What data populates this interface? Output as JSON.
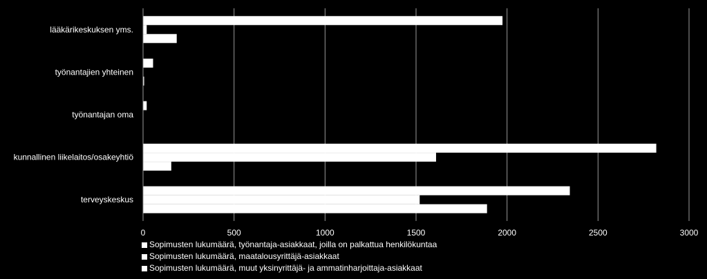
{
  "chart_data": {
    "type": "bar",
    "orientation": "horizontal",
    "categories": [
      "lääkärikeskuksen yms.",
      "työnantajien yhteinen",
      "työnantajan oma",
      "kunnallinen liikelaitos/osakeyhtiö",
      "terveyskeskus"
    ],
    "series": [
      {
        "name": "Sopimusten lukumäärä, työnantaja-asiakkaat, joilla on palkattua henkilökuntaa",
        "values": [
          1975,
          55,
          20,
          2820,
          2345
        ]
      },
      {
        "name": "Sopimusten lukumäärä, maatalousyrittäjä-asiakkaat",
        "values": [
          20,
          0,
          0,
          1610,
          1520
        ]
      },
      {
        "name": "Sopimusten lukumäärä, muut yksinyrittäjä- ja ammatinharjoittaja-asiakkaat",
        "values": [
          185,
          5,
          0,
          155,
          1890
        ]
      }
    ],
    "xticks": [
      "0",
      "500",
      "1000",
      "1500",
      "2000",
      "2500",
      "3000"
    ],
    "xlim": [
      0,
      3000
    ],
    "grid": true,
    "legend_position": "bottom",
    "colors": {
      "background": "#000000",
      "bars": "#ffffff",
      "grid": "#9a9a9a",
      "text": "#ffffff"
    }
  }
}
